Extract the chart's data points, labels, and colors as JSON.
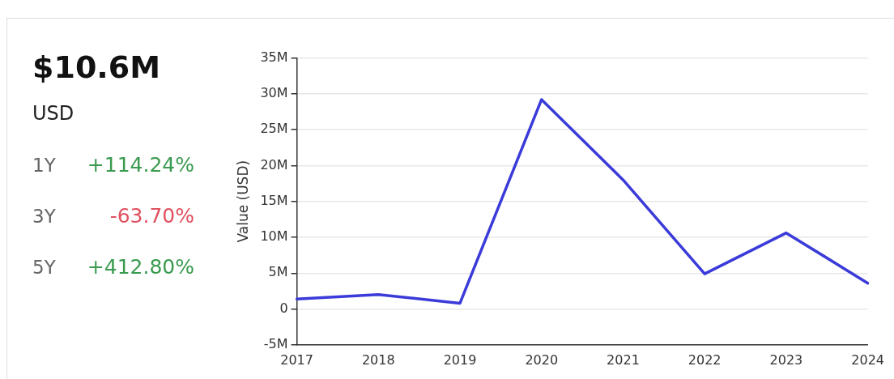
{
  "chart_data": {
    "type": "line",
    "title": "$10.6M",
    "subtitle": "USD",
    "annotations": [
      "1Y",
      "+114.24%",
      "3Y",
      "-63.70%",
      "5Y",
      "+412.80%"
    ],
    "ylabel": "Value (USD)",
    "categories": [
      "2017",
      "2018",
      "2019",
      "2020",
      "2021",
      "2022",
      "2023",
      "2024"
    ],
    "series": [
      {
        "color": "#3b3bd9",
        "values": [
          1.4,
          2.0,
          0.8,
          29.2,
          18.0,
          4.9,
          10.6,
          3.6
        ]
      }
    ],
    "ylim": [
      -5,
      35
    ],
    "yticks": [
      {
        "value": -5,
        "label": "-5M"
      },
      0,
      {
        "value": 5,
        "label": "5M"
      },
      {
        "value": 10,
        "label": "10M"
      },
      {
        "value": 15,
        "label": "15M"
      },
      {
        "value": 20,
        "label": "20M"
      },
      {
        "value": 25,
        "label": "25M"
      },
      {
        "value": 30,
        "label": "30M"
      },
      {
        "value": 35,
        "label": "35M"
      }
    ],
    "grid": "y",
    "legend": false,
    "marker": "none",
    "line_style": "solid"
  }
}
